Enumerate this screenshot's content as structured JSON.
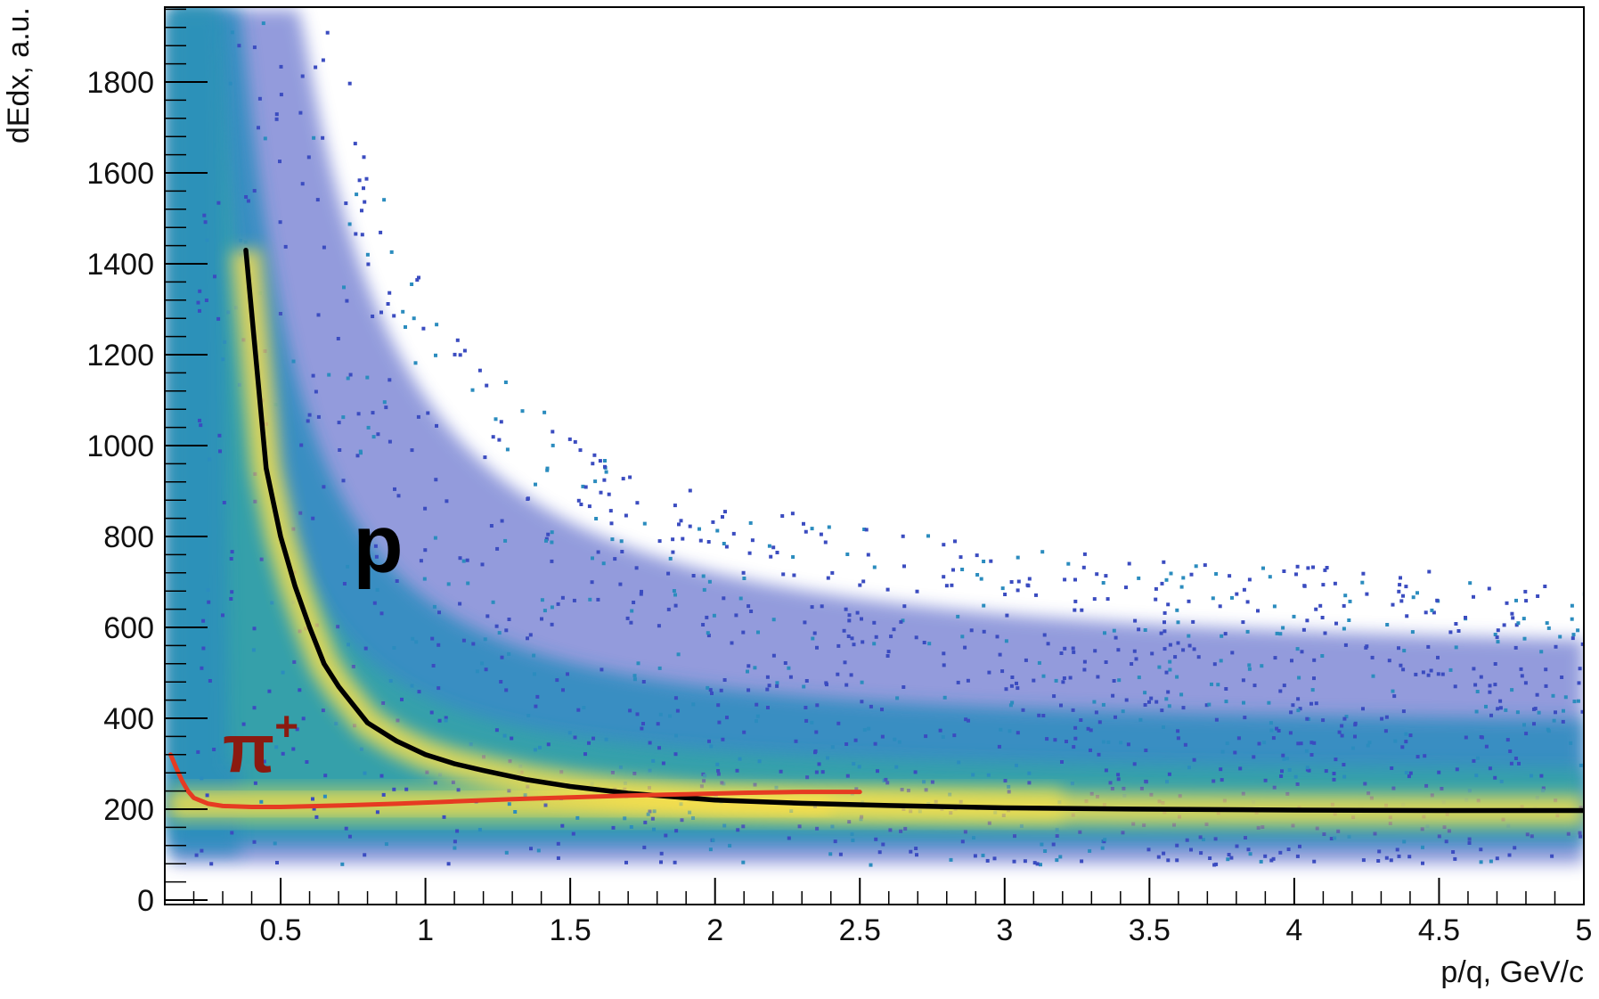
{
  "chart_data": {
    "type": "heatmap",
    "title": "",
    "xlabel": "p/q, GeV/c",
    "ylabel": "dEdx, a.u.",
    "xlim": [
      0.1,
      5.0
    ],
    "ylim": [
      0,
      1960
    ],
    "grid": false,
    "log_z": true,
    "x_ticks": [
      0.5,
      1,
      1.5,
      2,
      2.5,
      3,
      3.5,
      4,
      4.5,
      5
    ],
    "x_tick_labels": [
      "0.5",
      "1",
      "1.5",
      "2",
      "2.5",
      "3",
      "3.5",
      "4",
      "4.5",
      "5"
    ],
    "y_ticks": [
      0,
      200,
      400,
      600,
      800,
      1000,
      1200,
      1400,
      1600,
      1800
    ],
    "y_tick_labels": [
      "0",
      "200",
      "400",
      "600",
      "800",
      "1000",
      "1200",
      "1400",
      "1600",
      "1800"
    ],
    "series": [
      {
        "name": "p",
        "color": "#000000",
        "x": [
          0.38,
          0.45,
          0.5,
          0.55,
          0.6,
          0.65,
          0.7,
          0.8,
          0.9,
          1.0,
          1.1,
          1.2,
          1.35,
          1.5,
          1.7,
          2.0,
          2.3,
          2.6,
          3.0,
          3.5,
          4.0,
          4.5,
          5.0
        ],
        "y": [
          1430,
          950,
          800,
          690,
          600,
          520,
          470,
          390,
          350,
          320,
          300,
          285,
          265,
          250,
          235,
          220,
          213,
          208,
          203,
          200,
          198,
          197,
          197
        ]
      },
      {
        "name": "π⁺",
        "color": "#e63b22",
        "x": [
          0.12,
          0.14,
          0.16,
          0.18,
          0.2,
          0.25,
          0.3,
          0.4,
          0.5,
          0.7,
          0.9,
          1.1,
          1.3,
          1.5,
          1.7,
          1.9,
          2.1,
          2.3,
          2.5
        ],
        "y": [
          320,
          290,
          262,
          240,
          225,
          212,
          207,
          205,
          205,
          208,
          212,
          217,
          222,
          226,
          230,
          233,
          236,
          238,
          238
        ]
      }
    ],
    "annotations": [
      {
        "text": "p",
        "x": 0.75,
        "y": 780,
        "color": "#000000"
      },
      {
        "text": "π",
        "sup": "+",
        "x": 0.3,
        "y": 340,
        "color": "#8b1a10"
      }
    ],
    "colormap": [
      "#3b4cc0",
      "#2b8cbe",
      "#35a3a8",
      "#5cb89a",
      "#a9cc6e",
      "#f2d94e",
      "#ffee33"
    ]
  }
}
